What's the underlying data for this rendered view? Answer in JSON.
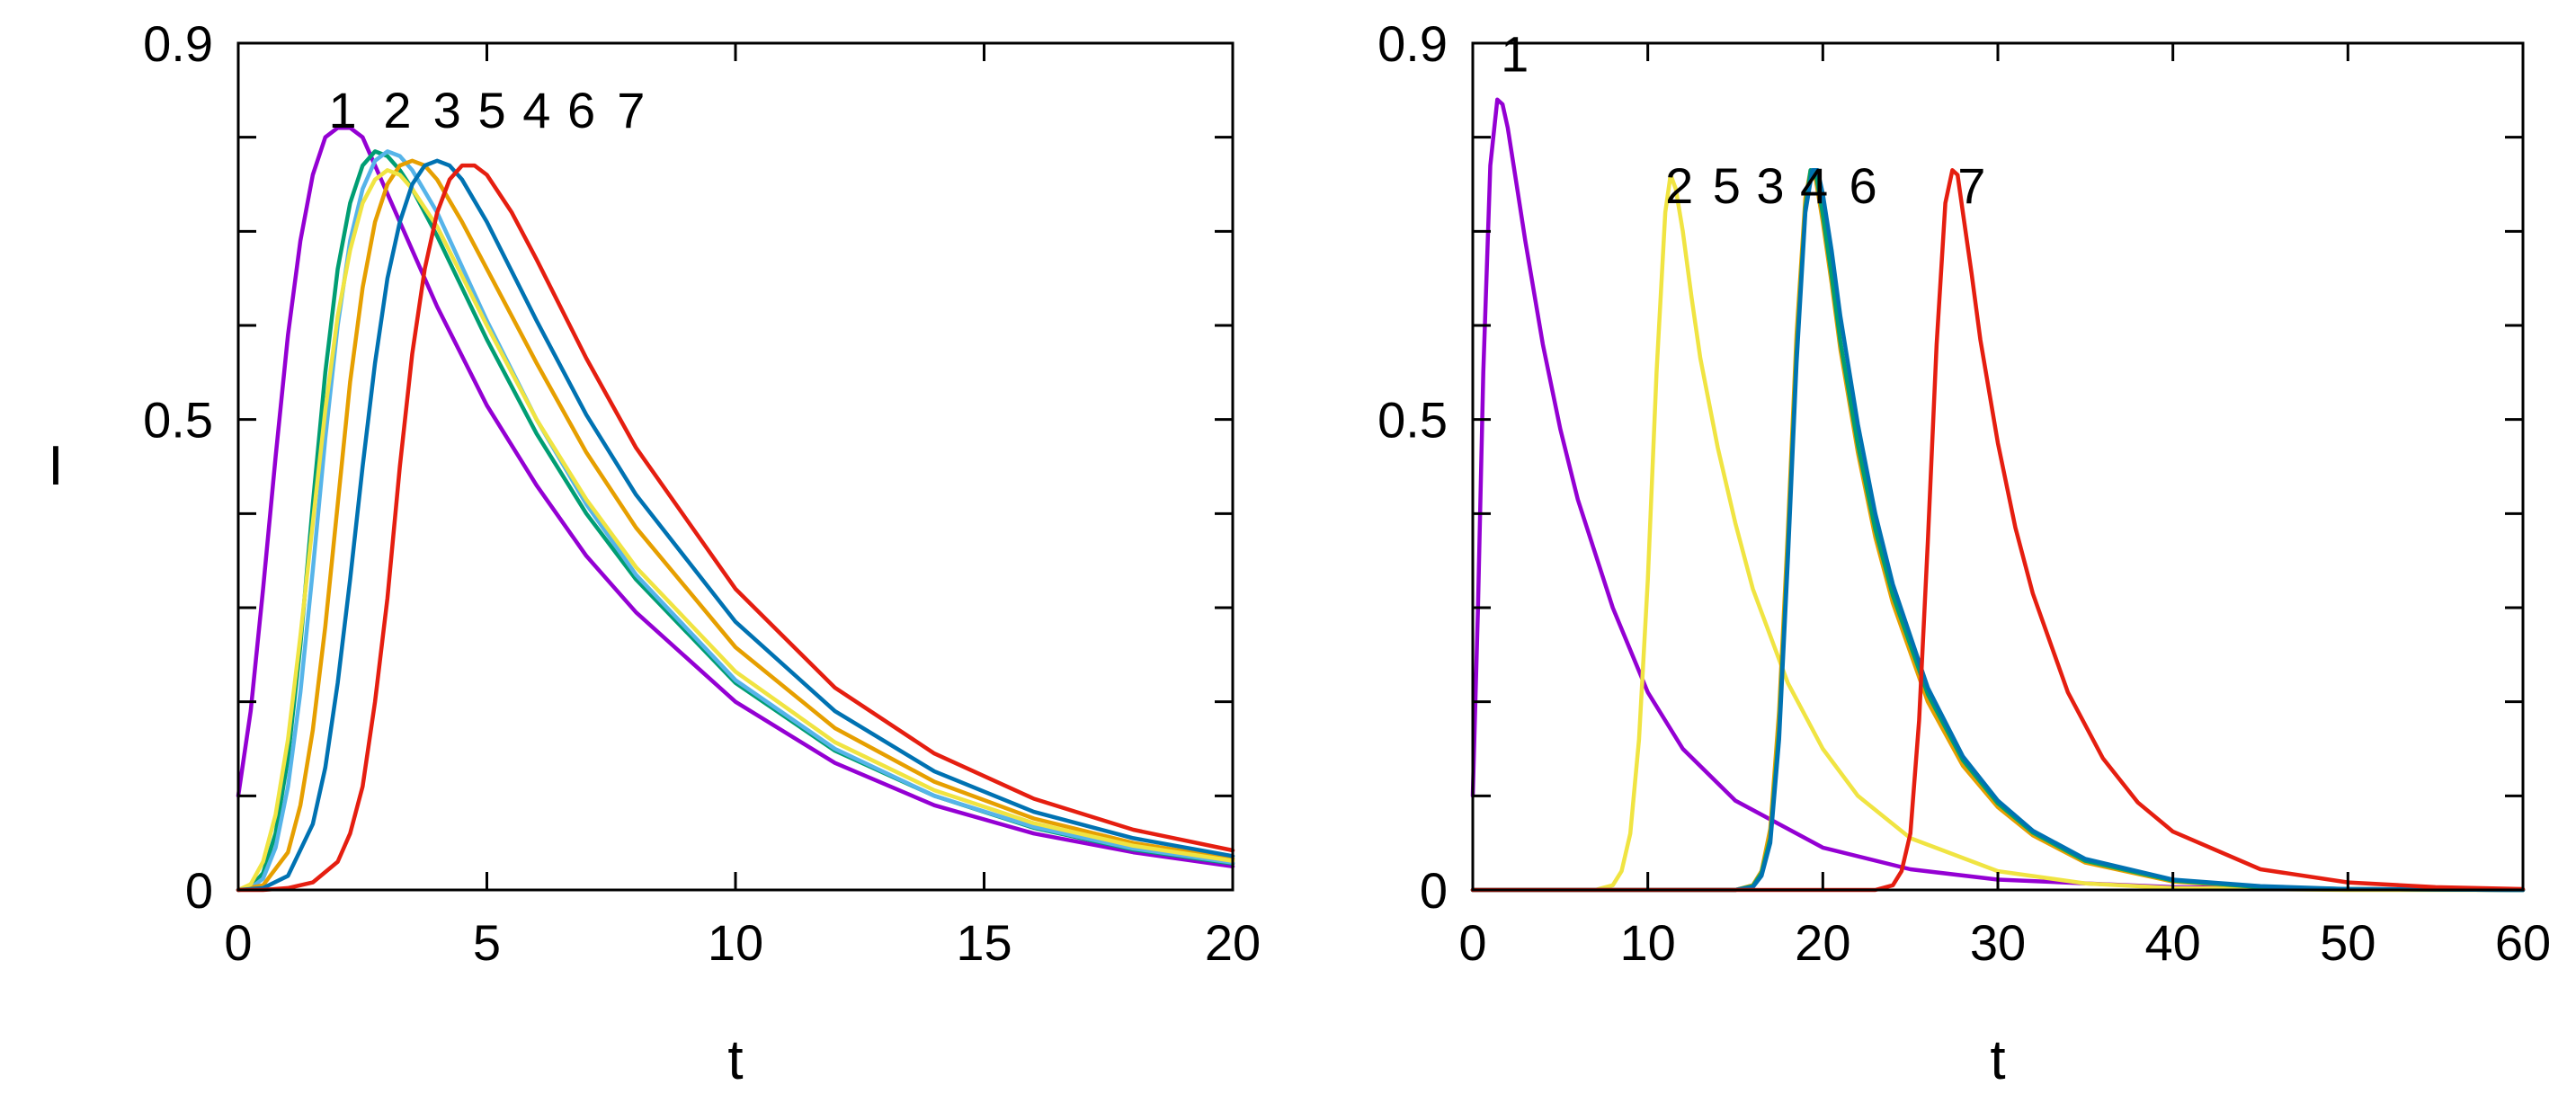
{
  "chart_data": [
    {
      "type": "line",
      "title": "",
      "xlabel": "t",
      "ylabel": "I",
      "xlim": [
        0,
        20
      ],
      "ylim": [
        0,
        0.9
      ],
      "xticks": [
        0,
        5,
        10,
        15,
        20
      ],
      "xtick_labels": [
        "0",
        "5",
        "10",
        "15",
        "20"
      ],
      "yticks": [
        0,
        0.5,
        0.9
      ],
      "ytick_labels": [
        "0",
        "0.5",
        "0.9"
      ],
      "y_minor_step": 0.1,
      "grid": false,
      "curve_labels": [
        {
          "text": "1",
          "x": 2.1,
          "y": 0.81
        },
        {
          "text": "2",
          "x": 3.2,
          "y": 0.81
        },
        {
          "text": "3",
          "x": 4.2,
          "y": 0.81
        },
        {
          "text": "5",
          "x": 5.1,
          "y": 0.81
        },
        {
          "text": "4",
          "x": 6.0,
          "y": 0.81
        },
        {
          "text": "6",
          "x": 6.9,
          "y": 0.81
        },
        {
          "text": "7",
          "x": 7.9,
          "y": 0.81
        }
      ],
      "series": [
        {
          "label": "1",
          "color": "#9400d3",
          "x": [
            0,
            0.25,
            0.5,
            0.75,
            1,
            1.25,
            1.5,
            1.75,
            2,
            2.25,
            2.5,
            3,
            3.5,
            4,
            5,
            6,
            7,
            8,
            10,
            12,
            14,
            16,
            18,
            20
          ],
          "y": [
            0.1,
            0.19,
            0.32,
            0.46,
            0.59,
            0.69,
            0.76,
            0.8,
            0.81,
            0.81,
            0.8,
            0.74,
            0.68,
            0.62,
            0.515,
            0.43,
            0.355,
            0.295,
            0.2,
            0.135,
            0.09,
            0.06,
            0.04,
            0.025
          ]
        },
        {
          "label": "2",
          "color": "#009e73",
          "x": [
            0,
            0.25,
            0.5,
            0.75,
            1,
            1.25,
            1.5,
            1.75,
            2,
            2.25,
            2.5,
            2.75,
            3,
            3.25,
            3.5,
            4,
            5,
            6,
            7,
            8,
            10,
            12,
            14,
            16,
            18,
            20
          ],
          "y": [
            0,
            0.003,
            0.018,
            0.06,
            0.14,
            0.26,
            0.41,
            0.55,
            0.66,
            0.73,
            0.77,
            0.785,
            0.78,
            0.765,
            0.745,
            0.695,
            0.585,
            0.485,
            0.4,
            0.33,
            0.22,
            0.148,
            0.1,
            0.066,
            0.043,
            0.028
          ]
        },
        {
          "label": "3",
          "color": "#56b4e9",
          "x": [
            0,
            0.25,
            0.5,
            0.75,
            1,
            1.25,
            1.5,
            1.75,
            2,
            2.25,
            2.5,
            2.75,
            3,
            3.25,
            3.5,
            4,
            5,
            6,
            7,
            8,
            10,
            12,
            14,
            16,
            18,
            20
          ],
          "y": [
            0,
            0.002,
            0.012,
            0.045,
            0.11,
            0.21,
            0.34,
            0.48,
            0.6,
            0.69,
            0.745,
            0.775,
            0.785,
            0.78,
            0.765,
            0.72,
            0.605,
            0.5,
            0.41,
            0.335,
            0.223,
            0.15,
            0.1,
            0.067,
            0.044,
            0.029
          ]
        },
        {
          "label": "4",
          "color": "#e69f00",
          "x": [
            0,
            0.5,
            1,
            1.25,
            1.5,
            1.75,
            2,
            2.25,
            2.5,
            2.75,
            3,
            3.25,
            3.5,
            3.75,
            4,
            4.5,
            5,
            6,
            7,
            8,
            10,
            12,
            14,
            16,
            18,
            20
          ],
          "y": [
            0,
            0.005,
            0.04,
            0.09,
            0.17,
            0.28,
            0.41,
            0.54,
            0.64,
            0.71,
            0.75,
            0.77,
            0.775,
            0.77,
            0.755,
            0.71,
            0.66,
            0.56,
            0.465,
            0.385,
            0.258,
            0.172,
            0.115,
            0.076,
            0.05,
            0.033
          ]
        },
        {
          "label": "5",
          "color": "#f0e442",
          "x": [
            0,
            0.25,
            0.5,
            0.75,
            1,
            1.25,
            1.5,
            1.75,
            2,
            2.25,
            2.5,
            2.75,
            3,
            3.25,
            3.5,
            4,
            5,
            6,
            7,
            8,
            10,
            12,
            14,
            16,
            18,
            20
          ],
          "y": [
            0,
            0.006,
            0.03,
            0.08,
            0.16,
            0.27,
            0.39,
            0.51,
            0.61,
            0.68,
            0.73,
            0.755,
            0.765,
            0.76,
            0.745,
            0.705,
            0.6,
            0.5,
            0.415,
            0.343,
            0.232,
            0.157,
            0.106,
            0.071,
            0.047,
            0.031
          ]
        },
        {
          "label": "6",
          "color": "#0072b2",
          "x": [
            0,
            0.5,
            1,
            1.5,
            1.75,
            2,
            2.25,
            2.5,
            2.75,
            3,
            3.25,
            3.5,
            3.75,
            4,
            4.25,
            4.5,
            5,
            6,
            7,
            8,
            10,
            12,
            14,
            16,
            18,
            20
          ],
          "y": [
            0,
            0.002,
            0.015,
            0.07,
            0.13,
            0.22,
            0.33,
            0.45,
            0.56,
            0.65,
            0.71,
            0.75,
            0.77,
            0.775,
            0.77,
            0.755,
            0.71,
            0.605,
            0.505,
            0.42,
            0.285,
            0.19,
            0.126,
            0.083,
            0.055,
            0.036
          ]
        },
        {
          "label": "7",
          "color": "#e51e10",
          "x": [
            0,
            0.5,
            1,
            1.5,
            2,
            2.25,
            2.5,
            2.75,
            3,
            3.25,
            3.5,
            3.75,
            4,
            4.25,
            4.5,
            4.75,
            5,
            5.5,
            6,
            7,
            8,
            10,
            12,
            14,
            16,
            18,
            20
          ],
          "y": [
            0,
            0,
            0.002,
            0.008,
            0.03,
            0.06,
            0.11,
            0.2,
            0.31,
            0.45,
            0.57,
            0.66,
            0.72,
            0.755,
            0.77,
            0.77,
            0.76,
            0.72,
            0.67,
            0.565,
            0.47,
            0.32,
            0.215,
            0.145,
            0.097,
            0.064,
            0.042
          ]
        }
      ]
    },
    {
      "type": "line",
      "title": "",
      "xlabel": "t",
      "ylabel": "",
      "xlim": [
        0,
        60
      ],
      "ylim": [
        0,
        0.9
      ],
      "xticks": [
        0,
        10,
        20,
        30,
        40,
        50,
        60
      ],
      "xtick_labels": [
        "0",
        "10",
        "20",
        "30",
        "40",
        "50",
        "60"
      ],
      "yticks": [
        0,
        0.5,
        0.9
      ],
      "ytick_labels": [
        "0",
        "0.5",
        "0.9"
      ],
      "y_minor_step": 0.1,
      "grid": false,
      "curve_labels": [
        {
          "text": "1",
          "x": 2.4,
          "y": 0.87
        },
        {
          "text": "2",
          "x": 11.8,
          "y": 0.73
        },
        {
          "text": "5",
          "x": 14.5,
          "y": 0.73
        },
        {
          "text": "3",
          "x": 17.0,
          "y": 0.73
        },
        {
          "text": "4",
          "x": 19.5,
          "y": 0.73
        },
        {
          "text": "6",
          "x": 22.3,
          "y": 0.73
        },
        {
          "text": "7",
          "x": 28.5,
          "y": 0.73
        }
      ],
      "series": [
        {
          "label": "1",
          "color": "#9400d3",
          "x": [
            0,
            0.3,
            0.6,
            1,
            1.4,
            1.7,
            2,
            2.5,
            3,
            4,
            5,
            6,
            8,
            10,
            12,
            15,
            20,
            25,
            30,
            40,
            50,
            60
          ],
          "y": [
            0.1,
            0.3,
            0.55,
            0.77,
            0.84,
            0.835,
            0.81,
            0.75,
            0.69,
            0.58,
            0.49,
            0.415,
            0.3,
            0.21,
            0.15,
            0.095,
            0.045,
            0.022,
            0.011,
            0.003,
            0.001,
            0
          ]
        },
        {
          "label": "2",
          "color": "#f0e442",
          "x": [
            0,
            7,
            8,
            8.5,
            9,
            9.5,
            10,
            10.5,
            11,
            11.3,
            11.6,
            12,
            12.5,
            13,
            14,
            15,
            16,
            18,
            20,
            22,
            25,
            30,
            35,
            40,
            50,
            60
          ],
          "y": [
            0,
            0,
            0.005,
            0.02,
            0.06,
            0.16,
            0.33,
            0.55,
            0.72,
            0.76,
            0.745,
            0.7,
            0.63,
            0.565,
            0.47,
            0.39,
            0.32,
            0.22,
            0.15,
            0.1,
            0.055,
            0.02,
            0.007,
            0.002,
            0,
            0
          ]
        },
        {
          "label": "3",
          "color": "#56b4e9",
          "x": [
            0,
            15,
            16,
            16.5,
            17,
            17.5,
            18,
            18.5,
            19,
            19.3,
            19.6,
            20,
            20.5,
            21,
            22,
            23,
            24,
            26,
            28,
            30,
            32,
            35,
            40,
            45,
            50,
            60
          ],
          "y": [
            0,
            0,
            0.005,
            0.02,
            0.06,
            0.18,
            0.37,
            0.58,
            0.73,
            0.765,
            0.76,
            0.715,
            0.65,
            0.58,
            0.47,
            0.38,
            0.31,
            0.205,
            0.135,
            0.09,
            0.06,
            0.03,
            0.01,
            0.003,
            0.001,
            0
          ]
        },
        {
          "label": "4",
          "color": "#e69f00",
          "x": [
            0,
            15,
            16,
            16.5,
            17,
            17.5,
            18,
            18.5,
            19,
            19.3,
            19.6,
            20,
            20.5,
            21,
            22,
            23,
            24,
            26,
            28,
            30,
            32,
            35,
            40,
            45,
            50,
            60
          ],
          "y": [
            0,
            0,
            0.005,
            0.02,
            0.065,
            0.19,
            0.38,
            0.59,
            0.735,
            0.765,
            0.755,
            0.71,
            0.645,
            0.575,
            0.465,
            0.375,
            0.305,
            0.2,
            0.132,
            0.088,
            0.058,
            0.029,
            0.009,
            0.003,
            0.001,
            0
          ]
        },
        {
          "label": "5",
          "color": "#009e73",
          "x": [
            0,
            15,
            16,
            16.5,
            17,
            17.5,
            18,
            18.5,
            19,
            19.3,
            19.6,
            20,
            20.5,
            21,
            22,
            23,
            24,
            26,
            28,
            30,
            32,
            35,
            40,
            45,
            50,
            60
          ],
          "y": [
            0,
            0,
            0.004,
            0.018,
            0.055,
            0.17,
            0.36,
            0.57,
            0.725,
            0.765,
            0.762,
            0.718,
            0.653,
            0.583,
            0.473,
            0.383,
            0.313,
            0.208,
            0.138,
            0.092,
            0.061,
            0.031,
            0.01,
            0.003,
            0.001,
            0
          ]
        },
        {
          "label": "6",
          "color": "#0072b2",
          "x": [
            0,
            15,
            16,
            16.5,
            17,
            17.5,
            18,
            18.5,
            19,
            19.4,
            19.7,
            20,
            20.5,
            21,
            22,
            23,
            24,
            26,
            28,
            30,
            32,
            35,
            40,
            45,
            50,
            60
          ],
          "y": [
            0,
            0,
            0.003,
            0.015,
            0.05,
            0.16,
            0.35,
            0.56,
            0.72,
            0.765,
            0.765,
            0.74,
            0.68,
            0.61,
            0.495,
            0.4,
            0.325,
            0.215,
            0.142,
            0.095,
            0.063,
            0.033,
            0.011,
            0.004,
            0.001,
            0
          ]
        },
        {
          "label": "7",
          "color": "#e51e10",
          "x": [
            0,
            23,
            24,
            24.5,
            25,
            25.5,
            26,
            26.5,
            27,
            27.4,
            27.7,
            28,
            28.5,
            29,
            30,
            31,
            32,
            34,
            36,
            38,
            40,
            45,
            50,
            55,
            60
          ],
          "y": [
            0,
            0,
            0.005,
            0.02,
            0.06,
            0.18,
            0.37,
            0.58,
            0.73,
            0.765,
            0.76,
            0.72,
            0.655,
            0.585,
            0.475,
            0.385,
            0.315,
            0.21,
            0.14,
            0.093,
            0.062,
            0.022,
            0.008,
            0.003,
            0.001
          ]
        }
      ]
    }
  ]
}
